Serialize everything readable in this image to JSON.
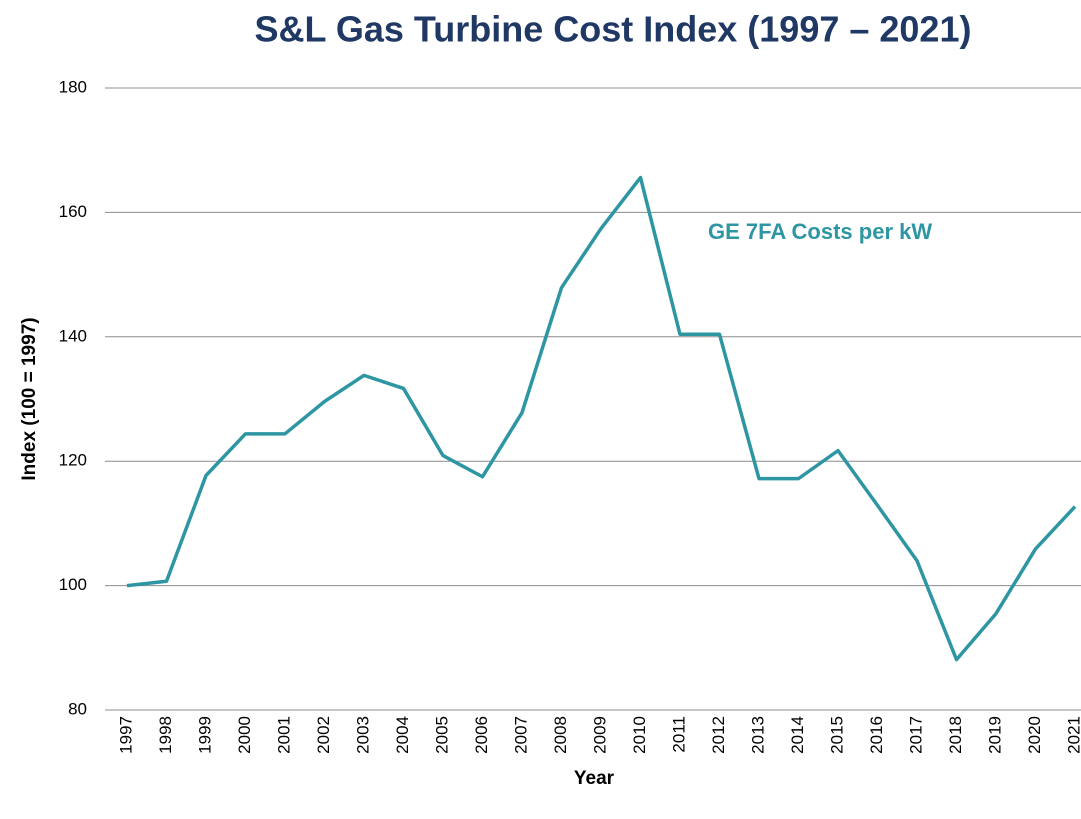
{
  "chart_data": {
    "type": "line",
    "title": "S&L Gas Turbine Cost Index (1997 – 2021)",
    "x_label": "Year",
    "y_label": "Index (100 = 1997)",
    "categories": [
      "1997",
      "1998",
      "1999",
      "2000",
      "2001",
      "2002",
      "2003",
      "2004",
      "2005",
      "2006",
      "2007",
      "2008",
      "2009",
      "2010",
      "2011",
      "2012",
      "2013",
      "2014",
      "2015",
      "2016",
      "2017",
      "2018",
      "2019",
      "2020",
      "2021"
    ],
    "series": [
      {
        "name": "GE 7FA Costs per kW",
        "color": "#2e96a3",
        "values": [
          100,
          100.7,
          117.7,
          124.4,
          124.4,
          129.6,
          133.8,
          131.7,
          120.9,
          117.5,
          127.8,
          147.9,
          157.4,
          165.6,
          140.4,
          140.4,
          117.2,
          117.2,
          121.7,
          112.9,
          104,
          88.1,
          95.5,
          105.9,
          112.7
        ]
      }
    ],
    "ylim": [
      80,
      180
    ],
    "yticks": [
      80,
      100,
      120,
      140,
      160,
      180
    ],
    "grid": true
  }
}
